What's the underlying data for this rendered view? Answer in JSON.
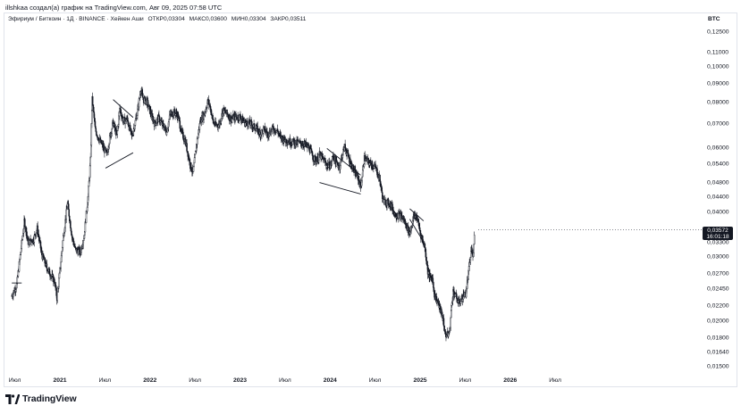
{
  "header": {
    "attribution": "illshkaa создал(а) график на TradingView.com, Авг 09, 2025 07:58 UTC"
  },
  "legend": {
    "symbol": "Эфириум / Биткоин · 1Д · BINANCE · Хейкен Аши",
    "open_label": "ОТКР",
    "open_value": "0,03304",
    "high_label": "МАКС",
    "high_value": "0,03600",
    "low_label": "МИН",
    "low_value": "0,03304",
    "close_label": "ЗАКР",
    "close_value": "0,03511"
  },
  "axis": {
    "currency": "BTC",
    "price_badge_value": "0,03572",
    "price_badge_timer": "16:01:18"
  },
  "branding": {
    "logo_text": "TradingView",
    "logo_icon": "tradingview-logo-icon"
  },
  "colors": {
    "candles": "#131722",
    "trendlines": "#131722",
    "badge": "#131722",
    "text": "#131722"
  },
  "chart_data": {
    "type": "candlestick",
    "symbol": "ETH/BTC",
    "exchange": "BINANCE",
    "interval": "1D",
    "style": "Heikin Ashi",
    "y_scale": "log",
    "ylim": [
      0.0147,
      0.136
    ],
    "y_ticks": [
      "0,12500",
      "0,11000",
      "0,10000",
      "0,09000",
      "0,08000",
      "0,07000",
      "0,06000",
      "0,05400",
      "0,04800",
      "0,04400",
      "0,04000",
      "0,03300",
      "0,03000",
      "0,02700",
      "0,02450",
      "0,02200",
      "0,02000",
      "0,01800",
      "0,01640",
      "0,01500"
    ],
    "x_ticks": [
      {
        "label": "Июл",
        "year": false
      },
      {
        "label": "2021",
        "year": true
      },
      {
        "label": "Июл",
        "year": false
      },
      {
        "label": "2022",
        "year": true
      },
      {
        "label": "Июл",
        "year": false
      },
      {
        "label": "2023",
        "year": true
      },
      {
        "label": "Июл",
        "year": false
      },
      {
        "label": "2024",
        "year": true
      },
      {
        "label": "Июл",
        "year": false
      },
      {
        "label": "2025",
        "year": true
      },
      {
        "label": "Июл",
        "year": false
      },
      {
        "label": "2026",
        "year": true
      },
      {
        "label": "Июл",
        "year": false
      }
    ],
    "price_path": [
      [
        "2020-06-20",
        0.0235
      ],
      [
        "2020-07-10",
        0.0252
      ],
      [
        "2020-08-10",
        0.0378
      ],
      [
        "2020-08-25",
        0.033
      ],
      [
        "2020-09-15",
        0.0335
      ],
      [
        "2020-10-01",
        0.036
      ],
      [
        "2020-10-20",
        0.0305
      ],
      [
        "2020-11-10",
        0.028
      ],
      [
        "2020-12-10",
        0.0258
      ],
      [
        "2020-12-20",
        0.0232
      ],
      [
        "2021-01-01",
        0.0275
      ],
      [
        "2021-01-15",
        0.0343
      ],
      [
        "2021-02-01",
        0.0422
      ],
      [
        "2021-02-20",
        0.034
      ],
      [
        "2021-03-05",
        0.0315
      ],
      [
        "2021-03-25",
        0.031
      ],
      [
        "2021-04-10",
        0.0347
      ],
      [
        "2021-04-25",
        0.044
      ],
      [
        "2021-05-05",
        0.0555
      ],
      [
        "2021-05-12",
        0.0815
      ],
      [
        "2021-05-25",
        0.0672
      ],
      [
        "2021-06-10",
        0.063
      ],
      [
        "2021-06-25",
        0.0605
      ],
      [
        "2021-07-10",
        0.0575
      ],
      [
        "2021-07-25",
        0.0655
      ],
      [
        "2021-08-05",
        0.0705
      ],
      [
        "2021-08-20",
        0.0648
      ],
      [
        "2021-09-01",
        0.0772
      ],
      [
        "2021-09-15",
        0.0712
      ],
      [
        "2021-10-01",
        0.0718
      ],
      [
        "2021-10-20",
        0.0645
      ],
      [
        "2021-11-10",
        0.0745
      ],
      [
        "2021-11-25",
        0.0868
      ],
      [
        "2021-12-05",
        0.0815
      ],
      [
        "2021-12-20",
        0.0805
      ],
      [
        "2022-01-05",
        0.0745
      ],
      [
        "2022-01-20",
        0.07
      ],
      [
        "2022-02-05",
        0.0725
      ],
      [
        "2022-02-25",
        0.0688
      ],
      [
        "2022-03-10",
        0.0665
      ],
      [
        "2022-03-25",
        0.0745
      ],
      [
        "2022-04-10",
        0.0752
      ],
      [
        "2022-04-25",
        0.0735
      ],
      [
        "2022-05-10",
        0.066
      ],
      [
        "2022-05-25",
        0.0625
      ],
      [
        "2022-06-15",
        0.0535
      ],
      [
        "2022-06-25",
        0.0512
      ],
      [
        "2022-07-10",
        0.062
      ],
      [
        "2022-07-25",
        0.0715
      ],
      [
        "2022-08-10",
        0.0745
      ],
      [
        "2022-08-25",
        0.081
      ],
      [
        "2022-09-05",
        0.0765
      ],
      [
        "2022-09-15",
        0.0705
      ],
      [
        "2022-09-25",
        0.0692
      ],
      [
        "2022-10-10",
        0.0698
      ],
      [
        "2022-10-25",
        0.0762
      ],
      [
        "2022-11-10",
        0.0745
      ],
      [
        "2022-11-25",
        0.0722
      ],
      [
        "2022-12-10",
        0.0728
      ],
      [
        "2023-01-01",
        0.0732
      ],
      [
        "2023-01-20",
        0.0705
      ],
      [
        "2023-02-10",
        0.0702
      ],
      [
        "2023-02-25",
        0.0688
      ],
      [
        "2023-03-10",
        0.0678
      ],
      [
        "2023-03-25",
        0.0658
      ],
      [
        "2023-04-10",
        0.0675
      ],
      [
        "2023-04-25",
        0.0655
      ],
      [
        "2023-05-15",
        0.0678
      ],
      [
        "2023-06-01",
        0.067
      ],
      [
        "2023-06-15",
        0.0642
      ],
      [
        "2023-07-01",
        0.0632
      ],
      [
        "2023-07-20",
        0.0626
      ],
      [
        "2023-08-10",
        0.0622
      ],
      [
        "2023-09-01",
        0.0618
      ],
      [
        "2023-09-20",
        0.0615
      ],
      [
        "2023-10-10",
        0.0598
      ],
      [
        "2023-10-25",
        0.0565
      ],
      [
        "2023-11-10",
        0.0552
      ],
      [
        "2023-11-20",
        0.0575
      ],
      [
        "2023-12-05",
        0.0558
      ],
      [
        "2023-12-20",
        0.0538
      ],
      [
        "2024-01-05",
        0.0538
      ],
      [
        "2024-01-15",
        0.0575
      ],
      [
        "2024-01-25",
        0.0545
      ],
      [
        "2024-02-10",
        0.0535
      ],
      [
        "2024-02-20",
        0.0575
      ],
      [
        "2024-03-01",
        0.0605
      ],
      [
        "2024-03-10",
        0.0582
      ],
      [
        "2024-03-25",
        0.0545
      ],
      [
        "2024-04-10",
        0.0515
      ],
      [
        "2024-04-25",
        0.0495
      ],
      [
        "2024-05-05",
        0.0468
      ],
      [
        "2024-05-20",
        0.0562
      ],
      [
        "2024-06-05",
        0.0548
      ],
      [
        "2024-06-20",
        0.054
      ],
      [
        "2024-07-05",
        0.0528
      ],
      [
        "2024-07-20",
        0.0495
      ],
      [
        "2024-08-05",
        0.0428
      ],
      [
        "2024-08-20",
        0.0425
      ],
      [
        "2024-09-05",
        0.0418
      ],
      [
        "2024-09-20",
        0.0395
      ],
      [
        "2024-10-05",
        0.0392
      ],
      [
        "2024-10-20",
        0.0388
      ],
      [
        "2024-11-05",
        0.0368
      ],
      [
        "2024-11-20",
        0.035
      ],
      [
        "2024-12-05",
        0.0385
      ],
      [
        "2024-12-15",
        0.0392
      ],
      [
        "2024-12-25",
        0.0372
      ],
      [
        "2025-01-05",
        0.0343
      ],
      [
        "2025-01-20",
        0.0322
      ],
      [
        "2025-02-01",
        0.0275
      ],
      [
        "2025-02-10",
        0.0265
      ],
      [
        "2025-02-20",
        0.0262
      ],
      [
        "2025-03-01",
        0.0235
      ],
      [
        "2025-03-15",
        0.0225
      ],
      [
        "2025-03-25",
        0.0214
      ],
      [
        "2025-04-05",
        0.0202
      ],
      [
        "2025-04-12",
        0.0185
      ],
      [
        "2025-04-22",
        0.0183
      ],
      [
        "2025-05-01",
        0.0188
      ],
      [
        "2025-05-08",
        0.0218
      ],
      [
        "2025-05-15",
        0.0242
      ],
      [
        "2025-05-25",
        0.0235
      ],
      [
        "2025-06-05",
        0.0225
      ],
      [
        "2025-06-15",
        0.0228
      ],
      [
        "2025-06-25",
        0.0235
      ],
      [
        "2025-07-05",
        0.0238
      ],
      [
        "2025-07-12",
        0.0258
      ],
      [
        "2025-07-20",
        0.0285
      ],
      [
        "2025-07-28",
        0.0318
      ],
      [
        "2025-08-03",
        0.0298
      ],
      [
        "2025-08-09",
        0.0351
      ]
    ],
    "last_candle": {
      "date": "2025-08-09",
      "open": 0.03304,
      "high": 0.036,
      "low": 0.03304,
      "close": 0.03511
    },
    "trendlines": [
      {
        "from": [
          "2020-06-20",
          0.0255
        ],
        "to": [
          "2020-07-30",
          0.0255
        ]
      },
      {
        "from": [
          "2021-08-05",
          0.0815
        ],
        "to": [
          "2021-10-25",
          0.0728
        ]
      },
      {
        "from": [
          "2021-07-05",
          0.0528
        ],
        "to": [
          "2021-10-25",
          0.0582
        ]
      },
      {
        "from": [
          "2023-12-20",
          0.0598
        ],
        "to": [
          "2024-05-05",
          0.0505
        ]
      },
      {
        "from": [
          "2023-11-20",
          0.0482
        ],
        "to": [
          "2024-05-05",
          0.0448
        ]
      },
      {
        "from": [
          "2024-11-20",
          0.0408
        ],
        "to": [
          "2025-01-15",
          0.0378
        ]
      },
      {
        "from": [
          "2024-11-20",
          0.0382
        ],
        "to": [
          "2025-01-10",
          0.0335
        ]
      }
    ]
  }
}
